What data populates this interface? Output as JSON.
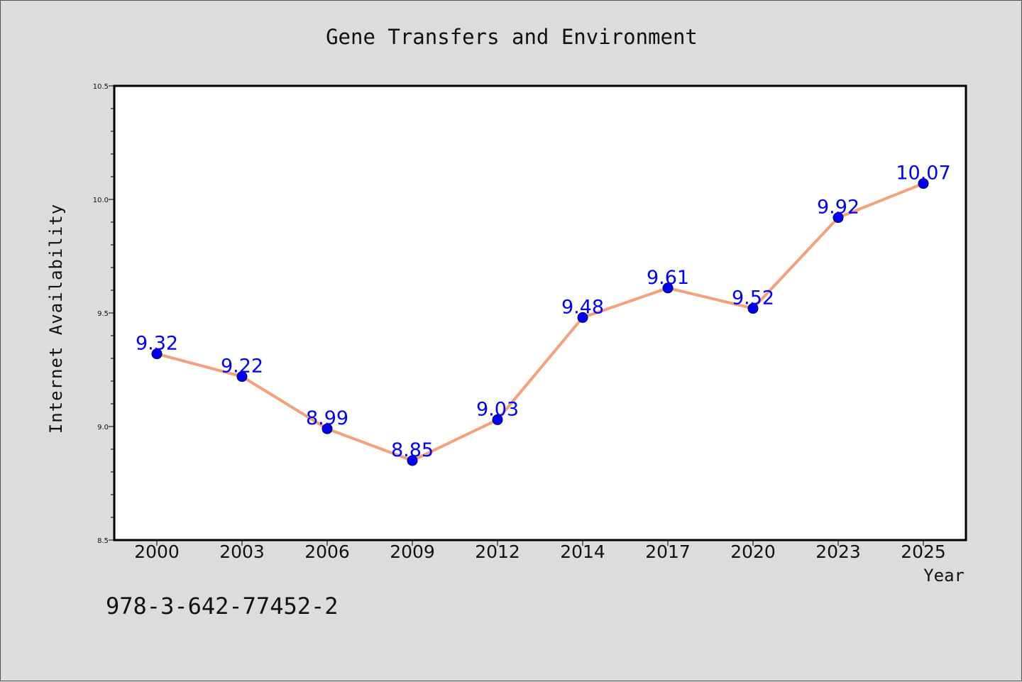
{
  "chart_data": {
    "type": "line",
    "title": "Gene Transfers and Environment",
    "xlabel": "Year",
    "ylabel": "Internet Availability",
    "categories": [
      "2000",
      "2003",
      "2006",
      "2009",
      "2012",
      "2014",
      "2017",
      "2020",
      "2023",
      "2025"
    ],
    "series": [
      {
        "values": [
          9.32,
          9.22,
          8.99,
          8.85,
          9.03,
          9.48,
          9.61,
          9.52,
          9.92,
          10.07
        ],
        "line_color": "#f4a07a",
        "marker_color": "#0000ff"
      }
    ],
    "data_labels": [
      "9.32",
      "9.22",
      "8.99",
      "8.85",
      "9.03",
      "9.48",
      "9.61",
      "9.52",
      "9.92",
      "10.07"
    ],
    "ylim": [
      8.5,
      10.5
    ],
    "yticks": [
      "8.5",
      "9.0",
      "9.5",
      "10.0",
      "10.5"
    ],
    "grid": false,
    "legend": "none"
  },
  "footer": {
    "isbn": "978-3-642-77452-2"
  },
  "colors": {
    "background": "#dcdcdc",
    "plot_area": "#ffffff",
    "line": "#f4a07a",
    "marker": "#0000ff",
    "data_label": "#0000ff"
  }
}
